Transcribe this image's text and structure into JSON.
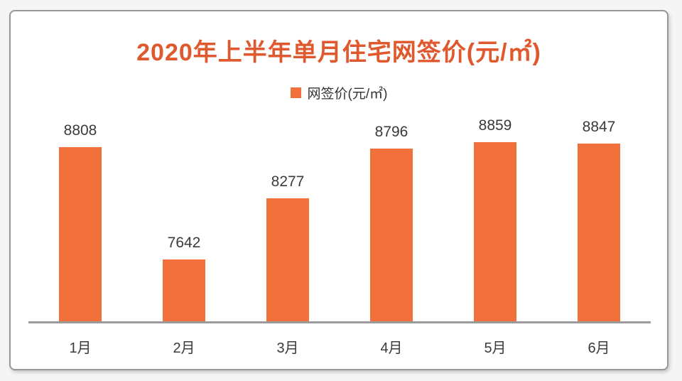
{
  "title": "2020年上半年单月住宅网签价(元/㎡)",
  "legend": {
    "label": "网签价(元/㎡)",
    "marker_color": "#F2703C",
    "marker_icon": "square-icon"
  },
  "colors": {
    "bar": "#F2703C",
    "title_text": "#E0582D",
    "axis_line": "#9B9B9B",
    "label_text": "#3A3A3A",
    "card_border": "#979797",
    "page_background": "#F5F5F5"
  },
  "chart_data": {
    "type": "bar",
    "title": "2020年上半年单月住宅网签价(元/㎡)",
    "categories": [
      "1月",
      "2月",
      "3月",
      "4月",
      "5月",
      "6月"
    ],
    "series": [
      {
        "name": "网签价(元/㎡)",
        "values": [
          8808,
          7642,
          8277,
          8796,
          8859,
          8847
        ]
      }
    ],
    "data_labels": [
      8808,
      7642,
      8277,
      8796,
      8859,
      8847
    ],
    "xlabel": "",
    "ylabel": "",
    "ylim": [
      7000,
      9000
    ],
    "y_axis_visible": false,
    "grid": false,
    "legend_position": "top",
    "bar_color": "#F2703C"
  }
}
